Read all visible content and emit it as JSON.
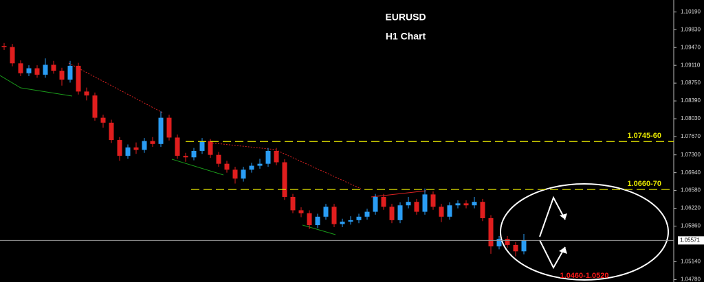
{
  "chart_data": {
    "type": "candlestick",
    "title": "EURUSD",
    "subtitle": "H1 Chart",
    "up_color": "#2a9df4",
    "down_color": "#e01e1e",
    "open": [
      1.095,
      1.0948,
      1.0915,
      1.0895,
      1.0905,
      1.0892,
      1.0912,
      1.09,
      1.0882,
      1.091,
      1.0858,
      1.085,
      1.0805,
      1.0795,
      1.076,
      1.0728,
      1.0745,
      1.074,
      1.0758,
      1.0752,
      1.0805,
      1.0765,
      1.0728,
      1.0725,
      1.0738,
      1.0758,
      1.073,
      1.0712,
      1.07,
      1.0682,
      1.07,
      1.0708,
      1.0712,
      1.0738,
      1.0715,
      1.0645,
      1.0618,
      1.0612,
      1.0588,
      1.0605,
      1.0625,
      1.059,
      1.0595,
      1.0598,
      1.0605,
      1.0615,
      1.0645,
      1.0625,
      1.0598,
      1.0628,
      1.0635,
      1.0615,
      1.065,
      1.0625,
      1.0605,
      1.0628,
      1.0632,
      1.0628,
      1.0635,
      1.0602,
      1.0545,
      1.056,
      1.0548,
      1.0535
    ],
    "high": [
      1.0956,
      1.0954,
      1.0921,
      1.0911,
      1.0911,
      1.0925,
      1.092,
      1.0906,
      1.092,
      1.0916,
      1.0866,
      1.0856,
      1.0811,
      1.0801,
      1.0766,
      1.0751,
      1.0755,
      1.0764,
      1.0766,
      1.0818,
      1.0811,
      1.0771,
      1.0734,
      1.0744,
      1.0764,
      1.0762,
      1.0736,
      1.0718,
      1.0706,
      1.0706,
      1.0714,
      1.0722,
      1.0744,
      1.0744,
      1.0721,
      1.0651,
      1.0624,
      1.0618,
      1.0611,
      1.0631,
      1.0631,
      1.0601,
      1.0606,
      1.0611,
      1.0621,
      1.0651,
      1.0651,
      1.0631,
      1.0634,
      1.0645,
      1.0641,
      1.0662,
      1.0656,
      1.0631,
      1.0634,
      1.0638,
      1.0638,
      1.0645,
      1.0641,
      1.0608,
      1.0566,
      1.0566,
      1.0554,
      1.057
    ],
    "low": [
      1.0942,
      1.0909,
      1.0889,
      1.0889,
      1.0886,
      1.0886,
      1.0894,
      1.087,
      1.0876,
      1.0852,
      1.084,
      1.0799,
      1.0785,
      1.0754,
      1.0718,
      1.0722,
      1.0732,
      1.0734,
      1.0746,
      1.0746,
      1.0759,
      1.0722,
      1.0716,
      1.0719,
      1.0732,
      1.0724,
      1.0706,
      1.0694,
      1.0672,
      1.0676,
      1.0694,
      1.0702,
      1.0706,
      1.0709,
      1.0639,
      1.0612,
      1.0604,
      1.058,
      1.0582,
      1.0599,
      1.0584,
      1.0584,
      1.0589,
      1.0592,
      1.0599,
      1.0609,
      1.0619,
      1.0592,
      1.0592,
      1.0622,
      1.0609,
      1.0609,
      1.0619,
      1.0594,
      1.0599,
      1.0622,
      1.0622,
      1.0622,
      1.0596,
      1.053,
      1.0539,
      1.0542,
      1.0525,
      1.0529
    ],
    "close": [
      1.0948,
      1.0915,
      1.0895,
      1.0905,
      1.0892,
      1.0912,
      1.09,
      1.0882,
      1.091,
      1.0858,
      1.085,
      1.0805,
      1.0795,
      1.076,
      1.0728,
      1.0745,
      1.074,
      1.0758,
      1.0752,
      1.0805,
      1.0765,
      1.0728,
      1.0725,
      1.0738,
      1.0758,
      1.073,
      1.0712,
      1.07,
      1.0682,
      1.07,
      1.0708,
      1.0712,
      1.0738,
      1.0715,
      1.0645,
      1.0618,
      1.0612,
      1.0588,
      1.0605,
      1.0625,
      1.059,
      1.0595,
      1.0598,
      1.0605,
      1.0615,
      1.0645,
      1.0625,
      1.0598,
      1.0628,
      1.0635,
      1.0615,
      1.065,
      1.0625,
      1.0605,
      1.0628,
      1.0632,
      1.0628,
      1.0635,
      1.0602,
      1.0545,
      1.056,
      1.0548,
      1.0535,
      1.0557
    ],
    "ylim": [
      1.0473,
      1.1043
    ],
    "yticks": [
      {
        "value": 1.1019,
        "label": "1.10190"
      },
      {
        "value": 1.0983,
        "label": "1.09830"
      },
      {
        "value": 1.0947,
        "label": "1.09470"
      },
      {
        "value": 1.0911,
        "label": "1.09110"
      },
      {
        "value": 1.0875,
        "label": "1.08750"
      },
      {
        "value": 1.0839,
        "label": "1.08390"
      },
      {
        "value": 1.0803,
        "label": "1.08030"
      },
      {
        "value": 1.0767,
        "label": "1.07670"
      },
      {
        "value": 1.073,
        "label": "1.07300"
      },
      {
        "value": 1.0694,
        "label": "1.06940"
      },
      {
        "value": 1.0658,
        "label": "1.06580"
      },
      {
        "value": 1.0622,
        "label": "1.06220"
      },
      {
        "value": 1.0586,
        "label": "1.05860"
      },
      {
        "value": 1.0514,
        "label": "1.05140"
      },
      {
        "value": 1.0478,
        "label": "1.04780"
      }
    ],
    "current_price": 1.05571,
    "levels": [
      {
        "value": 1.0757,
        "label": "1.0745-60",
        "color": "#e6e600"
      },
      {
        "value": 1.066,
        "label": "1.0660-70",
        "color": "#e6e600"
      }
    ],
    "target_label": "1.0460-1.0520",
    "target_color": "#ff1a1a"
  }
}
